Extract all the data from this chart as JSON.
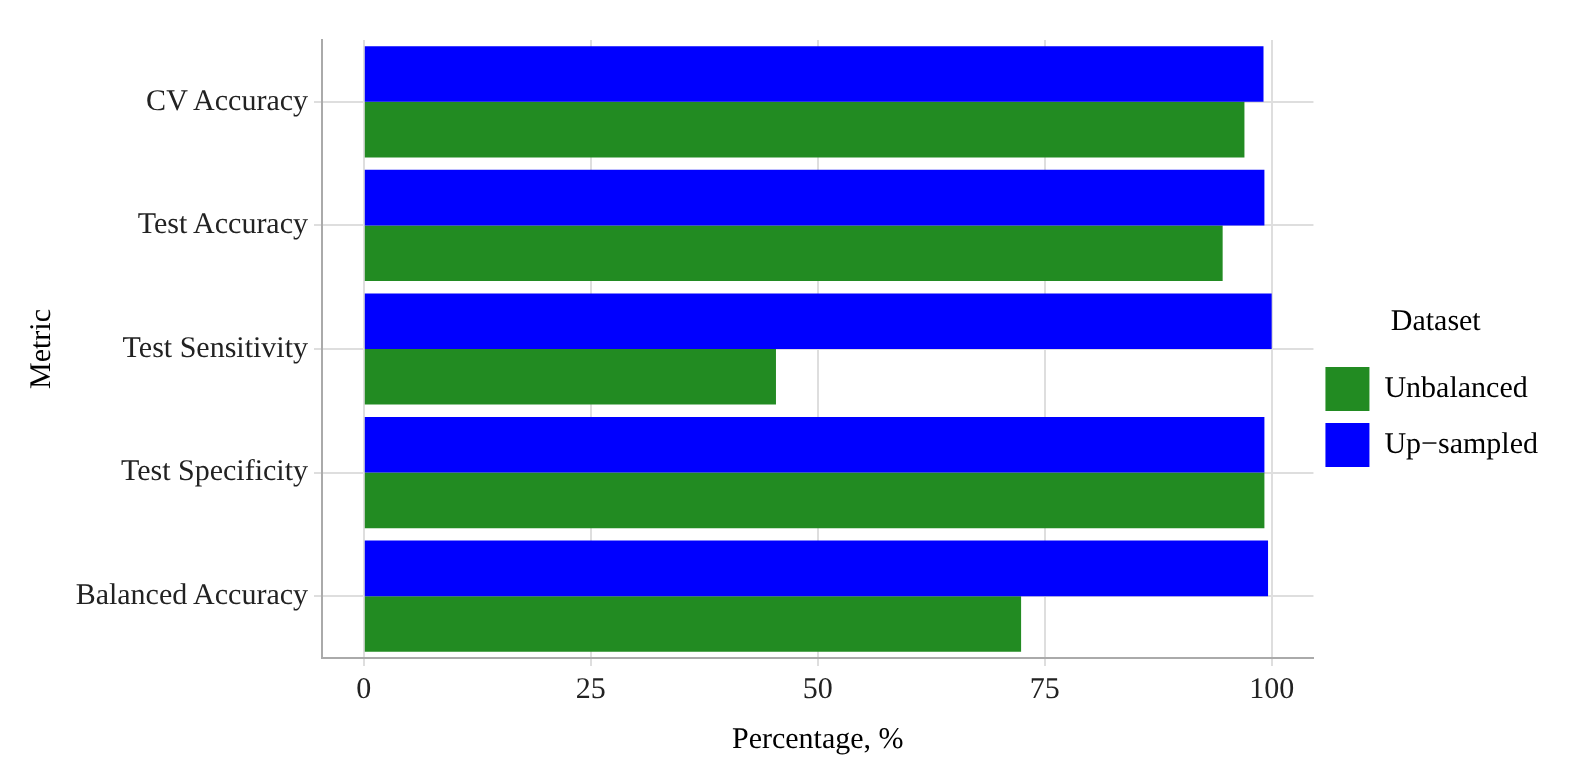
{
  "chart_data": {
    "type": "bar",
    "orientation": "horizontal",
    "xlabel": "Percentage, %",
    "ylabel": "Metric",
    "legend_title": "Dataset",
    "legend": "right",
    "grid": true,
    "categories": [
      "CV Accuracy",
      "Test Accuracy",
      "Test Sensitivity",
      "Test Specificity",
      "Balanced Accuracy"
    ],
    "xlim": [
      -4.6,
      104.6
    ],
    "xticks": [
      0,
      25,
      50,
      75,
      100
    ],
    "series": [
      {
        "name": "Unbalanced",
        "color": "#228b22",
        "values": [
          97.0,
          94.6,
          45.4,
          99.2,
          72.4
        ]
      },
      {
        "name": "Up−sampled",
        "color": "#0000ff",
        "values": [
          99.1,
          99.2,
          100,
          99.2,
          99.6
        ]
      }
    ]
  }
}
